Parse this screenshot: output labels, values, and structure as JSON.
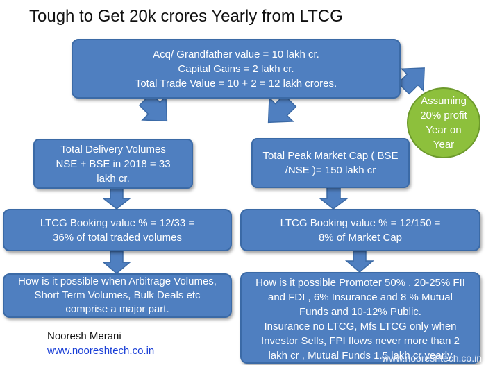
{
  "title": "Tough to Get 20k crores Yearly from LTCG",
  "top_box": {
    "lines": [
      "Acq/ Grandfather value = 10 lakh cr.",
      "Capital Gains = 2 lakh cr.",
      "Total Trade Value = 10 + 2 = 12 lakh crores."
    ]
  },
  "assumption": {
    "lines": [
      "Assuming",
      "20% profit",
      "Year on",
      "Year"
    ]
  },
  "left_column": {
    "volume_box": {
      "lines": [
        "Total Delivery Volumes",
        "NSE + BSE in 2018 = 33",
        "lakh cr."
      ]
    },
    "booking_box": {
      "lines": [
        "LTCG Booking value % = 12/33 =",
        "36% of total traded volumes"
      ]
    },
    "question_box": {
      "lines": [
        "How is it possible when Arbitrage Volumes,",
        "Short Term Volumes, Bulk Deals etc",
        "comprise a major part."
      ]
    }
  },
  "right_column": {
    "market_cap_box": {
      "lines": [
        "Total Peak Market Cap ( BSE",
        "/NSE )= 150 lakh cr"
      ]
    },
    "booking_box": {
      "lines": [
        "LTCG Booking value % = 12/150 =",
        "8% of Market Cap"
      ]
    },
    "question_box": {
      "lines": [
        "How is it possible Promoter 50% , 20-25% FII",
        "and FDI , 6% Insurance and 8 % Mutual",
        "Funds and  10-12% Public.",
        "Insurance no LTCG, Mfs LTCG only when",
        "Investor Sells, FPI flows never more than 2",
        "lakh cr , Mutual Funds 1.5 lakh cr yearly"
      ]
    }
  },
  "footer": {
    "author": "Nooresh Merani",
    "website": "www.nooreshtech.co.in"
  },
  "watermark": "www.nooreshtech.co.in",
  "colors": {
    "box_fill": "#4f7fc0",
    "box_border": "#3b6aa6",
    "circle_fill": "#8dc03c",
    "text_on_box": "#ffffff",
    "link": "#1a3fd6"
  }
}
